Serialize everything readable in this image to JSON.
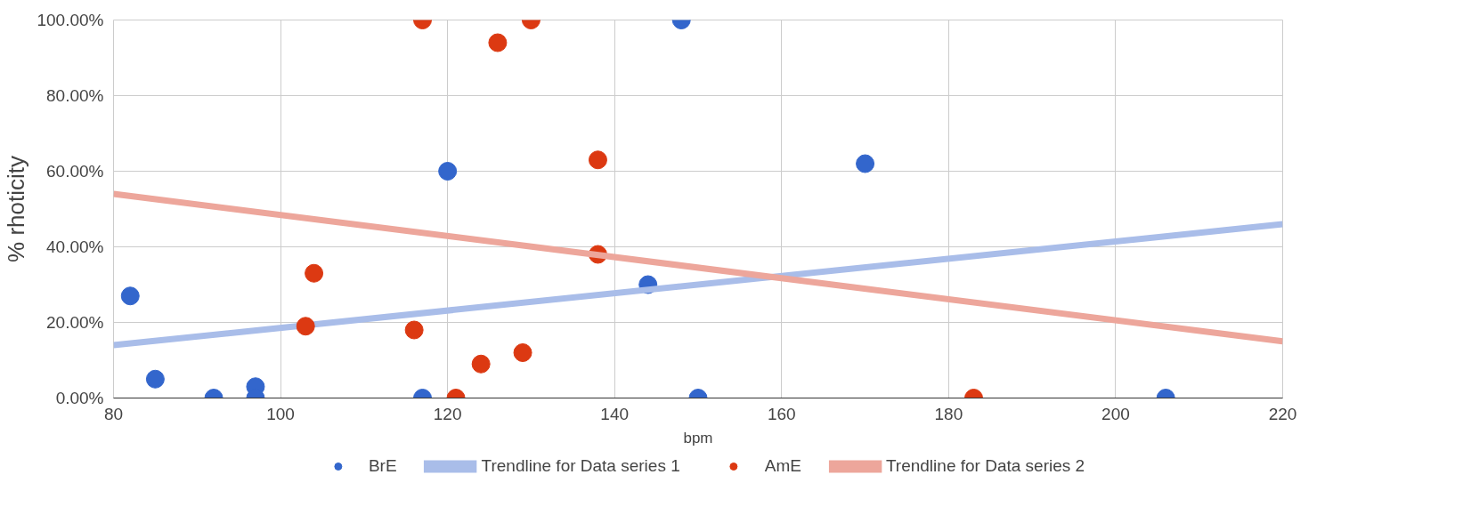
{
  "chart_data": {
    "type": "scatter",
    "xlabel": "bpm",
    "ylabel": "% rhoticity",
    "xlim": [
      80,
      220
    ],
    "xticks": [
      80,
      100,
      120,
      140,
      160,
      180,
      200,
      220
    ],
    "ylim": [
      0,
      100
    ],
    "yticks": [
      {
        "value": 0,
        "label": "0.00%"
      },
      {
        "value": 20,
        "label": "20.00%"
      },
      {
        "value": 40,
        "label": "40.00%"
      },
      {
        "value": 60,
        "label": "60.00%"
      },
      {
        "value": 80,
        "label": "80.00%"
      },
      {
        "value": 100,
        "label": "100.00%"
      }
    ],
    "grid": true,
    "legend": "bottom",
    "marker": "circle",
    "series": [
      {
        "name": "BrE",
        "color": "#3366cc",
        "x": [
          82,
          85,
          92,
          97,
          97,
          117,
          120,
          144,
          148,
          150,
          170,
          206
        ],
        "values": [
          27,
          5,
          0,
          3,
          0,
          0,
          60,
          30,
          100,
          0,
          62,
          0
        ]
      },
      {
        "name": "Trendline for Data series 1",
        "type": "line",
        "marker": "none",
        "color": "#a9bde9",
        "x": [
          80,
          220
        ],
        "values": [
          14,
          46
        ]
      },
      {
        "name": "AmE",
        "color": "#dc3912",
        "x": [
          103,
          104,
          116,
          117,
          121,
          124,
          126,
          129,
          130,
          138,
          138,
          183
        ],
        "values": [
          19,
          33,
          18,
          100,
          0,
          9,
          94,
          12,
          100,
          63,
          38,
          0
        ]
      },
      {
        "name": "Trendline for Data series 2",
        "type": "line",
        "marker": "none",
        "color": "#eda69b",
        "x": [
          80,
          220
        ],
        "values": [
          54,
          15
        ]
      }
    ]
  }
}
